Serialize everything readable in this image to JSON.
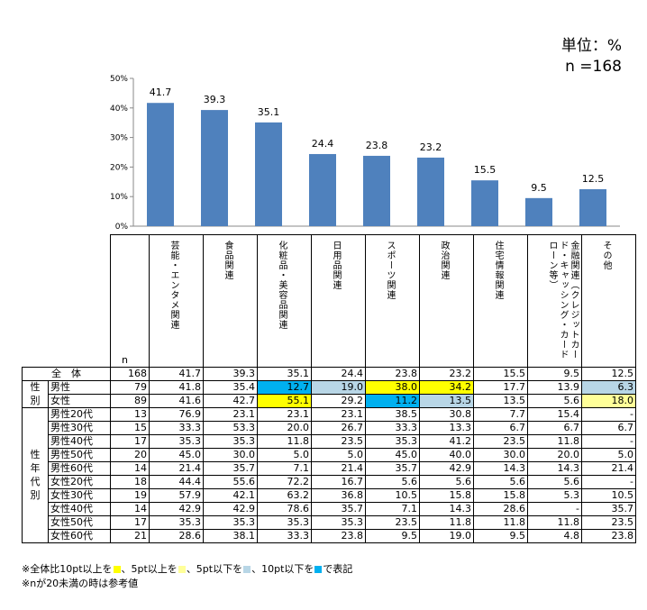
{
  "unit_label": "単位：%",
  "n_label": "n =168",
  "colors": {
    "bar": "#4F81BD",
    "high10": "#FFFF00",
    "high5": "#FFFF99",
    "low5": "#B8D6E6",
    "low10": "#00B0F0"
  },
  "chart_data": {
    "type": "bar",
    "categories": [
      "芸能・エンタメ関連",
      "食品関連",
      "化粧品・美容品関連",
      "日用品関連",
      "スポーツ関連",
      "政治関連",
      "住宅情報関連",
      "金融関連（クレジットカード・キャッシング・カードローン等）",
      "その他"
    ],
    "values": [
      41.7,
      39.3,
      35.1,
      24.4,
      23.8,
      23.2,
      15.5,
      9.5,
      12.5
    ],
    "yticks": [
      "0%",
      "10%",
      "20%",
      "30%",
      "40%",
      "50%"
    ],
    "ylim": [
      0,
      50
    ],
    "grid": false
  },
  "table": {
    "n_header": "n",
    "rows": [
      {
        "group": "",
        "label": "全　体",
        "n": "168",
        "values": [
          "41.7",
          "39.3",
          "35.1",
          "24.4",
          "23.8",
          "23.2",
          "15.5",
          "9.5",
          "12.5"
        ],
        "hl": [
          "",
          "",
          "",
          "",
          "",
          "",
          "",
          "",
          ""
        ]
      },
      {
        "group": "性",
        "label": "男性",
        "n": "79",
        "values": [
          "41.8",
          "35.4",
          "12.7",
          "19.0",
          "38.0",
          "34.2",
          "17.7",
          "13.9",
          "6.3"
        ],
        "hl": [
          "",
          "",
          "low10",
          "low5",
          "high10",
          "high10",
          "",
          "",
          "low5"
        ]
      },
      {
        "group": "別",
        "label": "女性",
        "n": "89",
        "values": [
          "41.6",
          "42.7",
          "55.1",
          "29.2",
          "11.2",
          "13.5",
          "13.5",
          "5.6",
          "18.0"
        ],
        "hl": [
          "",
          "",
          "high10",
          "",
          "low10",
          "low5",
          "",
          "",
          "high5"
        ]
      },
      {
        "group": "",
        "label": "男性20代",
        "n": "13",
        "values": [
          "76.9",
          "23.1",
          "23.1",
          "23.1",
          "38.5",
          "30.8",
          "7.7",
          "15.4",
          "-"
        ],
        "hl": [
          "",
          "",
          "",
          "",
          "",
          "",
          "",
          "",
          ""
        ]
      },
      {
        "group": "",
        "label": "男性30代",
        "n": "15",
        "values": [
          "33.3",
          "53.3",
          "20.0",
          "26.7",
          "33.3",
          "13.3",
          "6.7",
          "6.7",
          "6.7"
        ],
        "hl": [
          "",
          "",
          "",
          "",
          "",
          "",
          "",
          "",
          ""
        ]
      },
      {
        "group": "",
        "label": "男性40代",
        "n": "17",
        "values": [
          "35.3",
          "35.3",
          "11.8",
          "23.5",
          "35.3",
          "41.2",
          "23.5",
          "11.8",
          "-"
        ],
        "hl": [
          "",
          "",
          "",
          "",
          "",
          "",
          "",
          "",
          ""
        ]
      },
      {
        "group": "性",
        "label": "男性50代",
        "n": "20",
        "values": [
          "45.0",
          "30.0",
          "5.0",
          "5.0",
          "45.0",
          "40.0",
          "30.0",
          "20.0",
          "5.0"
        ],
        "hl": [
          "",
          "",
          "",
          "",
          "",
          "",
          "",
          "",
          ""
        ]
      },
      {
        "group": "年",
        "label": "男性60代",
        "n": "14",
        "values": [
          "21.4",
          "35.7",
          "7.1",
          "21.4",
          "35.7",
          "42.9",
          "14.3",
          "14.3",
          "21.4"
        ],
        "hl": [
          "",
          "",
          "",
          "",
          "",
          "",
          "",
          "",
          ""
        ]
      },
      {
        "group": "代",
        "label": "女性20代",
        "n": "18",
        "values": [
          "44.4",
          "55.6",
          "72.2",
          "16.7",
          "5.6",
          "5.6",
          "5.6",
          "5.6",
          "-"
        ],
        "hl": [
          "",
          "",
          "",
          "",
          "",
          "",
          "",
          "",
          ""
        ]
      },
      {
        "group": "別",
        "label": "女性30代",
        "n": "19",
        "values": [
          "57.9",
          "42.1",
          "63.2",
          "36.8",
          "10.5",
          "15.8",
          "15.8",
          "5.3",
          "10.5"
        ],
        "hl": [
          "",
          "",
          "",
          "",
          "",
          "",
          "",
          "",
          ""
        ]
      },
      {
        "group": "",
        "label": "女性40代",
        "n": "14",
        "values": [
          "42.9",
          "42.9",
          "78.6",
          "35.7",
          "7.1",
          "14.3",
          "28.6",
          "-",
          "35.7"
        ],
        "hl": [
          "",
          "",
          "",
          "",
          "",
          "",
          "",
          "",
          ""
        ]
      },
      {
        "group": "",
        "label": "女性50代",
        "n": "17",
        "values": [
          "35.3",
          "35.3",
          "35.3",
          "35.3",
          "23.5",
          "11.8",
          "11.8",
          "11.8",
          "23.5"
        ],
        "hl": [
          "",
          "",
          "",
          "",
          "",
          "",
          "",
          "",
          ""
        ]
      },
      {
        "group": "",
        "label": "女性60代",
        "n": "21",
        "values": [
          "28.6",
          "38.1",
          "33.3",
          "23.8",
          "9.5",
          "19.0",
          "9.5",
          "4.8",
          "23.8"
        ],
        "hl": [
          "",
          "",
          "",
          "",
          "",
          "",
          "",
          "",
          ""
        ]
      }
    ]
  },
  "notes": {
    "line1": [
      "※全体比10pt以上を",
      "、5pt以上を",
      "、5pt以下を",
      "、10pt以下を",
      "で表記"
    ],
    "line2": "※nが20未満の時は参考値"
  }
}
